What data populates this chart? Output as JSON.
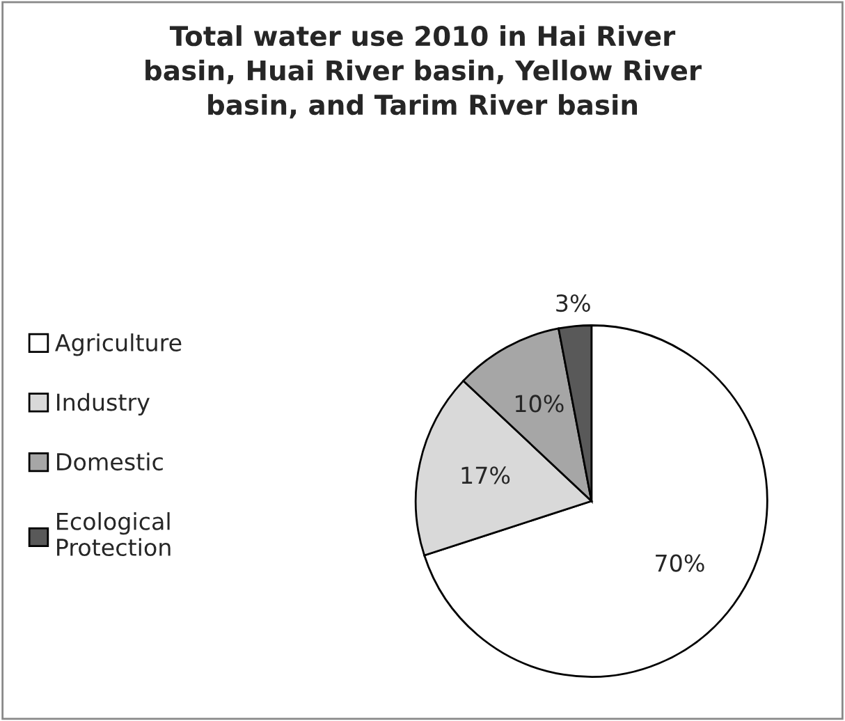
{
  "chart_data": {
    "type": "pie",
    "title": "Total water use 2010 in Hai River\nbasin, Huai River basin, Yellow River\nbasin, and Tarim River basin",
    "categories": [
      "Agriculture",
      "Industry",
      "Domestic",
      "Ecological\nProtection"
    ],
    "values": [
      70,
      17,
      10,
      3
    ],
    "colors": [
      "#ffffff",
      "#d9d9d9",
      "#a6a6a6",
      "#595959"
    ],
    "value_labels": [
      "70%",
      "17%",
      "10%",
      "3%"
    ],
    "legend": "left"
  }
}
